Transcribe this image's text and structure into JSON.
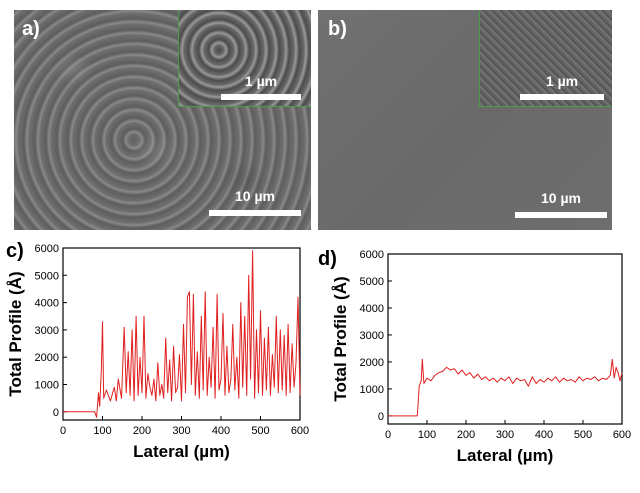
{
  "panels": {
    "a": {
      "label": "a)",
      "inset_scale": "1 µm",
      "main_scale": "10 µm"
    },
    "b": {
      "label": "b)",
      "inset_scale": "1 µm",
      "main_scale": "10 µm"
    },
    "c": {
      "label": "c)"
    },
    "d": {
      "label": "d)"
    }
  },
  "chart_data": [
    {
      "id": "c",
      "type": "line",
      "xlabel": "Lateral (µm)",
      "ylabel": "Total Profile (Å)",
      "xlim": [
        0,
        600
      ],
      "ylim": [
        -300,
        6000
      ],
      "xticks": [
        0,
        100,
        200,
        300,
        400,
        500,
        600
      ],
      "yticks": [
        0,
        1000,
        2000,
        3000,
        4000,
        5000,
        6000
      ],
      "color": "#e02020",
      "x": [
        0,
        80,
        85,
        90,
        93,
        97,
        100,
        103,
        110,
        120,
        130,
        135,
        140,
        148,
        155,
        160,
        165,
        170,
        175,
        180,
        185,
        190,
        195,
        200,
        205,
        210,
        215,
        220,
        225,
        230,
        235,
        240,
        245,
        250,
        255,
        260,
        265,
        270,
        275,
        280,
        285,
        290,
        295,
        300,
        305,
        310,
        315,
        320,
        325,
        330,
        335,
        340,
        345,
        350,
        355,
        360,
        365,
        370,
        375,
        380,
        385,
        390,
        395,
        400,
        405,
        410,
        415,
        420,
        425,
        430,
        435,
        440,
        445,
        450,
        455,
        460,
        465,
        470,
        475,
        480,
        485,
        490,
        495,
        500,
        505,
        510,
        515,
        520,
        525,
        530,
        535,
        540,
        545,
        550,
        555,
        560,
        565,
        570,
        575,
        580,
        585,
        590,
        595,
        600
      ],
      "values": [
        0,
        0,
        -200,
        700,
        200,
        1500,
        3300,
        500,
        800,
        400,
        900,
        400,
        1200,
        500,
        3100,
        700,
        2200,
        600,
        3000,
        400,
        3500,
        600,
        2000,
        700,
        3500,
        500,
        1400,
        900,
        600,
        1200,
        400,
        1800,
        600,
        1000,
        500,
        2700,
        700,
        1900,
        400,
        2400,
        700,
        900,
        2100,
        400,
        3200,
        700,
        4200,
        4400,
        1000,
        4300,
        600,
        2200,
        500,
        3500,
        800,
        4400,
        600,
        2000,
        900,
        3100,
        500,
        4300,
        800,
        1200,
        3600,
        600,
        2400,
        700,
        1200,
        3200,
        800,
        2000,
        500,
        4000,
        900,
        3500,
        600,
        5000,
        1200,
        5900,
        500,
        3000,
        700,
        3700,
        600,
        2700,
        800,
        3100,
        600,
        2100,
        900,
        3500,
        700,
        3000,
        800,
        2800,
        600,
        3200,
        700,
        2500,
        900,
        1800,
        4200,
        600
      ]
    },
    {
      "id": "d",
      "type": "line",
      "xlabel": "Lateral (µm)",
      "ylabel": "Total Profile (Å)",
      "xlim": [
        0,
        600
      ],
      "ylim": [
        -300,
        6000
      ],
      "xticks": [
        0,
        100,
        200,
        300,
        400,
        500,
        600
      ],
      "yticks": [
        0,
        1000,
        2000,
        3000,
        4000,
        5000,
        6000
      ],
      "color": "#e02020",
      "x": [
        0,
        75,
        80,
        85,
        88,
        92,
        100,
        110,
        120,
        130,
        140,
        150,
        160,
        170,
        180,
        190,
        200,
        210,
        220,
        230,
        240,
        250,
        260,
        270,
        280,
        290,
        300,
        310,
        320,
        330,
        340,
        350,
        360,
        370,
        380,
        390,
        400,
        410,
        420,
        430,
        440,
        450,
        460,
        470,
        480,
        490,
        500,
        510,
        520,
        530,
        540,
        550,
        560,
        570,
        575,
        580,
        585,
        590,
        595,
        600
      ],
      "values": [
        0,
        0,
        1100,
        1300,
        2100,
        1200,
        1400,
        1300,
        1500,
        1600,
        1650,
        1800,
        1700,
        1750,
        1550,
        1700,
        1500,
        1600,
        1400,
        1550,
        1350,
        1450,
        1300,
        1400,
        1250,
        1400,
        1300,
        1450,
        1200,
        1400,
        1300,
        1350,
        1100,
        1450,
        1200,
        1350,
        1250,
        1400,
        1300,
        1450,
        1250,
        1400,
        1300,
        1350,
        1250,
        1450,
        1300,
        1400,
        1350,
        1450,
        1300,
        1400,
        1350,
        1500,
        2100,
        1400,
        1800,
        1600,
        1300,
        1600
      ]
    }
  ]
}
